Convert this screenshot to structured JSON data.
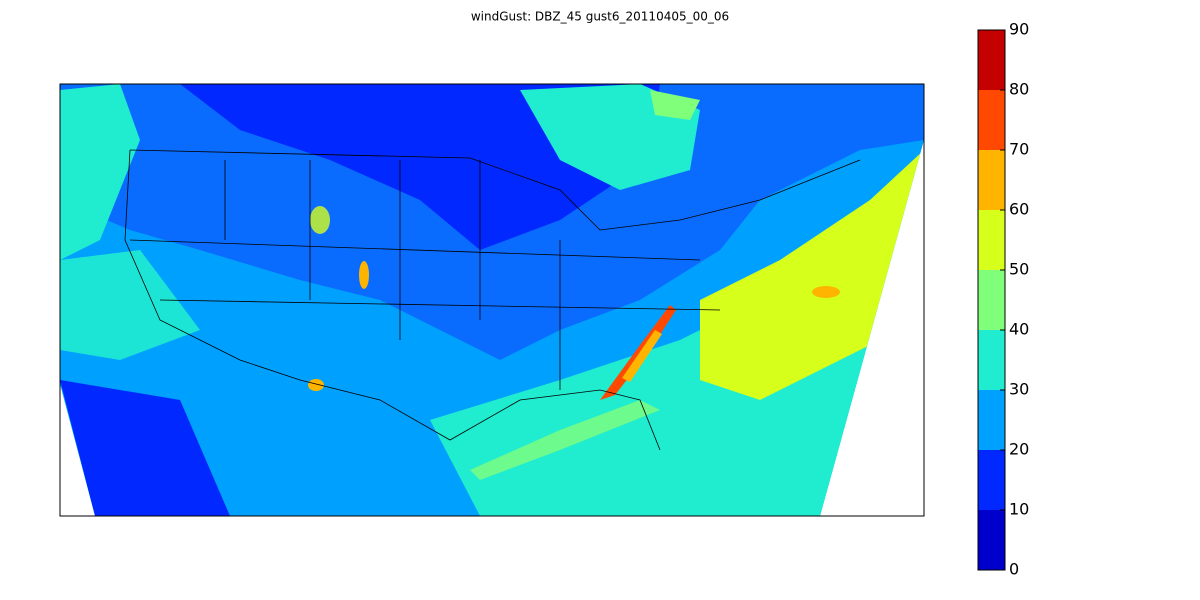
{
  "title": "windGust: DBZ_45 gust6_20110405_00_06",
  "colorbar": {
    "levels": [
      0,
      10,
      20,
      30,
      40,
      50,
      60,
      70,
      80,
      90
    ],
    "colors": [
      "#0000cd",
      "#0028ff",
      "#00a0ff",
      "#20ecd0",
      "#80ff7a",
      "#d6ff1c",
      "#ffb400",
      "#ff4800",
      "#c40000"
    ],
    "ticks": [
      0,
      10,
      20,
      30,
      40,
      50,
      60,
      70,
      80,
      90
    ]
  }
}
